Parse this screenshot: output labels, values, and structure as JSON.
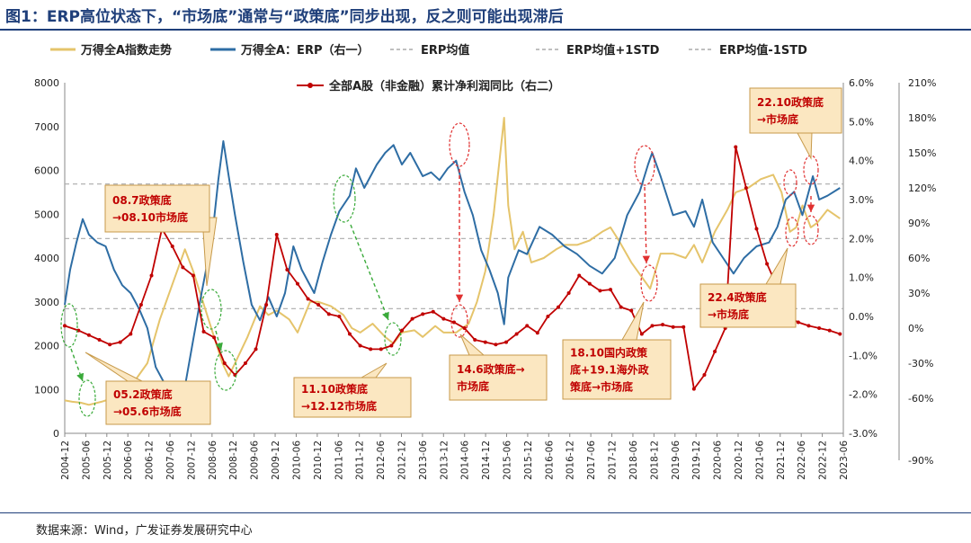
{
  "title": "图1：ERP高位状态下，“市场底”通常与“政策底”同步出现，反之则可能出现滞后",
  "source": "数据来源：Wind，广发证券发展研究中心",
  "colors": {
    "index": "#e5c46b",
    "erp": "#2e6da4",
    "profit": "#c00000",
    "erp_lines": "#aaaaaa",
    "callout_fill": "#fbe7c1",
    "callout_border": "#c79a4a",
    "green_arrow": "#3aaa3a",
    "red_arrow": "#e03030"
  },
  "chart_data": {
    "type": "line",
    "title": "图1：ERP高位状态下，“市场底”通常与“政策底”同步出现，反之则可能出现滞后",
    "x_labels": [
      "2004-12",
      "2005-06",
      "2005-12",
      "2006-06",
      "2006-12",
      "2007-06",
      "2007-12",
      "2008-06",
      "2008-12",
      "2009-06",
      "2009-12",
      "2010-06",
      "2010-12",
      "2011-06",
      "2011-12",
      "2012-06",
      "2012-12",
      "2013-06",
      "2013-12",
      "2014-06",
      "2014-12",
      "2015-06",
      "2015-12",
      "2016-06",
      "2016-12",
      "2017-06",
      "2017-12",
      "2018-06",
      "2018-12",
      "2019-06",
      "2019-12",
      "2020-06",
      "2020-12",
      "2021-06",
      "2021-12",
      "2022-06",
      "2022-12",
      "2023-06"
    ],
    "y_left": {
      "min": 0,
      "max": 8000,
      "ticks": [
        "0",
        "1000",
        "2000",
        "3000",
        "4000",
        "5000",
        "6000",
        "7000",
        "8000"
      ]
    },
    "y_right1": {
      "min": -3.0,
      "max": 6.0,
      "ticks": [
        "-3.0%",
        "-2.0%",
        "-1.0%",
        "0.0%",
        "1.0%",
        "2.0%",
        "3.0%",
        "4.0%",
        "5.0%",
        "6.0%"
      ]
    },
    "y_right2": {
      "min": -90,
      "max": 210,
      "ticks": [
        "-90%",
        "-60%",
        "-30%",
        "0%",
        "30%",
        "60%",
        "90%",
        "120%",
        "150%",
        "180%",
        "210%"
      ]
    },
    "legend_row1": [
      "万得全A指数走势",
      "万得全A：ERP（右一）",
      "ERP均值",
      "ERP均值+1STD",
      "ERP均值-1STD"
    ],
    "legend_row2": "全部A股（非金融）累计净利润同比（右二）",
    "erp_mean": 2.0,
    "erp_mean_plus_std": 3.4,
    "erp_mean_minus_std": 0.2,
    "series": [
      {
        "name": "万得全A指数走势",
        "axis": "left",
        "points": [
          [
            2004.92,
            750
          ],
          [
            2005.1,
            720
          ],
          [
            2005.3,
            700
          ],
          [
            2005.5,
            650
          ],
          [
            2005.8,
            720
          ],
          [
            2006.0,
            780
          ],
          [
            2006.3,
            950
          ],
          [
            2006.6,
            1200
          ],
          [
            2006.9,
            1600
          ],
          [
            2007.2,
            2600
          ],
          [
            2007.5,
            3400
          ],
          [
            2007.8,
            4200
          ],
          [
            2008.0,
            3700
          ],
          [
            2008.2,
            3100
          ],
          [
            2008.5,
            2200
          ],
          [
            2008.7,
            1600
          ],
          [
            2008.85,
            1300
          ],
          [
            2009.0,
            1600
          ],
          [
            2009.3,
            2200
          ],
          [
            2009.6,
            2900
          ],
          [
            2009.8,
            2700
          ],
          [
            2010.0,
            2800
          ],
          [
            2010.3,
            2600
          ],
          [
            2010.5,
            2300
          ],
          [
            2010.8,
            3000
          ],
          [
            2011.0,
            3000
          ],
          [
            2011.3,
            2900
          ],
          [
            2011.6,
            2700
          ],
          [
            2011.8,
            2400
          ],
          [
            2012.0,
            2300
          ],
          [
            2012.3,
            2500
          ],
          [
            2012.6,
            2200
          ],
          [
            2012.8,
            2050
          ],
          [
            2013.0,
            2300
          ],
          [
            2013.3,
            2350
          ],
          [
            2013.5,
            2200
          ],
          [
            2013.8,
            2450
          ],
          [
            2014.0,
            2300
          ],
          [
            2014.3,
            2300
          ],
          [
            2014.6,
            2500
          ],
          [
            2014.8,
            3000
          ],
          [
            2015.0,
            3700
          ],
          [
            2015.2,
            5000
          ],
          [
            2015.45,
            7200
          ],
          [
            2015.55,
            5200
          ],
          [
            2015.7,
            4200
          ],
          [
            2015.9,
            4600
          ],
          [
            2016.1,
            3900
          ],
          [
            2016.4,
            4000
          ],
          [
            2016.7,
            4200
          ],
          [
            2016.9,
            4300
          ],
          [
            2017.2,
            4300
          ],
          [
            2017.5,
            4400
          ],
          [
            2017.8,
            4600
          ],
          [
            2018.0,
            4700
          ],
          [
            2018.2,
            4400
          ],
          [
            2018.5,
            3900
          ],
          [
            2018.8,
            3500
          ],
          [
            2018.95,
            3300
          ],
          [
            2019.2,
            4100
          ],
          [
            2019.5,
            4100
          ],
          [
            2019.8,
            4000
          ],
          [
            2020.0,
            4300
          ],
          [
            2020.2,
            3900
          ],
          [
            2020.5,
            4600
          ],
          [
            2020.8,
            5100
          ],
          [
            2021.0,
            5500
          ],
          [
            2021.3,
            5600
          ],
          [
            2021.6,
            5800
          ],
          [
            2021.9,
            5900
          ],
          [
            2022.1,
            5500
          ],
          [
            2022.3,
            4600
          ],
          [
            2022.45,
            4700
          ],
          [
            2022.6,
            5200
          ],
          [
            2022.8,
            4700
          ],
          [
            2022.95,
            4800
          ],
          [
            2023.2,
            5100
          ],
          [
            2023.5,
            4900
          ]
        ]
      },
      {
        "name": "万得全A：ERP（右一）",
        "axis": "right1",
        "points": [
          [
            2004.92,
            0.3
          ],
          [
            2005.05,
            1.2
          ],
          [
            2005.2,
            1.9
          ],
          [
            2005.35,
            2.5
          ],
          [
            2005.5,
            2.1
          ],
          [
            2005.7,
            1.9
          ],
          [
            2005.9,
            1.8
          ],
          [
            2006.1,
            1.2
          ],
          [
            2006.3,
            0.8
          ],
          [
            2006.5,
            0.6
          ],
          [
            2006.7,
            0.2
          ],
          [
            2006.9,
            -0.3
          ],
          [
            2007.1,
            -1.3
          ],
          [
            2007.35,
            -1.8
          ],
          [
            2007.6,
            -2.0
          ],
          [
            2007.8,
            -1.8
          ],
          [
            2008.0,
            -0.6
          ],
          [
            2008.2,
            0.6
          ],
          [
            2008.45,
            2.0
          ],
          [
            2008.6,
            3.5
          ],
          [
            2008.72,
            4.5
          ],
          [
            2008.85,
            3.6
          ],
          [
            2009.0,
            2.6
          ],
          [
            2009.2,
            1.4
          ],
          [
            2009.4,
            0.3
          ],
          [
            2009.6,
            -0.1
          ],
          [
            2009.8,
            0.5
          ],
          [
            2010.0,
            0.0
          ],
          [
            2010.2,
            0.6
          ],
          [
            2010.4,
            1.8
          ],
          [
            2010.6,
            1.2
          ],
          [
            2010.9,
            0.6
          ],
          [
            2011.1,
            1.4
          ],
          [
            2011.3,
            2.1
          ],
          [
            2011.5,
            2.7
          ],
          [
            2011.75,
            3.1
          ],
          [
            2011.9,
            3.8
          ],
          [
            2012.1,
            3.3
          ],
          [
            2012.4,
            3.9
          ],
          [
            2012.6,
            4.2
          ],
          [
            2012.8,
            4.4
          ],
          [
            2013.0,
            3.9
          ],
          [
            2013.2,
            4.2
          ],
          [
            2013.5,
            3.6
          ],
          [
            2013.7,
            3.7
          ],
          [
            2013.9,
            3.5
          ],
          [
            2014.1,
            3.8
          ],
          [
            2014.3,
            4.0
          ],
          [
            2014.5,
            3.2
          ],
          [
            2014.7,
            2.6
          ],
          [
            2014.9,
            1.7
          ],
          [
            2015.1,
            1.2
          ],
          [
            2015.3,
            0.6
          ],
          [
            2015.45,
            -0.2
          ],
          [
            2015.55,
            1.0
          ],
          [
            2015.8,
            1.7
          ],
          [
            2016.0,
            1.6
          ],
          [
            2016.3,
            2.3
          ],
          [
            2016.6,
            2.1
          ],
          [
            2016.9,
            1.8
          ],
          [
            2017.2,
            1.6
          ],
          [
            2017.5,
            1.3
          ],
          [
            2017.8,
            1.1
          ],
          [
            2018.1,
            1.5
          ],
          [
            2018.4,
            2.6
          ],
          [
            2018.7,
            3.2
          ],
          [
            2018.9,
            3.9
          ],
          [
            2019.0,
            4.2
          ],
          [
            2019.2,
            3.6
          ],
          [
            2019.5,
            2.6
          ],
          [
            2019.8,
            2.7
          ],
          [
            2020.0,
            2.3
          ],
          [
            2020.2,
            3.0
          ],
          [
            2020.45,
            1.9
          ],
          [
            2020.7,
            1.5
          ],
          [
            2020.95,
            1.1
          ],
          [
            2021.2,
            1.5
          ],
          [
            2021.5,
            1.8
          ],
          [
            2021.8,
            1.9
          ],
          [
            2022.0,
            2.3
          ],
          [
            2022.2,
            3.0
          ],
          [
            2022.4,
            3.2
          ],
          [
            2022.6,
            2.6
          ],
          [
            2022.85,
            3.6
          ],
          [
            2023.0,
            3.0
          ],
          [
            2023.2,
            3.1
          ],
          [
            2023.5,
            3.3
          ]
        ]
      },
      {
        "name": "全部A股（非金融）累计净利润同比（右二）",
        "axis": "right2",
        "points": [
          [
            2004.92,
            2
          ],
          [
            2005.25,
            -2
          ],
          [
            2005.5,
            -6
          ],
          [
            2005.75,
            -10
          ],
          [
            2006.0,
            -14
          ],
          [
            2006.25,
            -12
          ],
          [
            2006.5,
            -5
          ],
          [
            2006.75,
            20
          ],
          [
            2007.0,
            45
          ],
          [
            2007.25,
            85
          ],
          [
            2007.5,
            70
          ],
          [
            2007.75,
            52
          ],
          [
            2008.0,
            45
          ],
          [
            2008.25,
            -3
          ],
          [
            2008.5,
            -8
          ],
          [
            2008.75,
            -30
          ],
          [
            2009.0,
            -40
          ],
          [
            2009.25,
            -30
          ],
          [
            2009.5,
            -18
          ],
          [
            2009.75,
            20
          ],
          [
            2010.0,
            80
          ],
          [
            2010.25,
            50
          ],
          [
            2010.5,
            38
          ],
          [
            2010.75,
            25
          ],
          [
            2011.0,
            20
          ],
          [
            2011.25,
            12
          ],
          [
            2011.5,
            10
          ],
          [
            2011.75,
            -5
          ],
          [
            2012.0,
            -15
          ],
          [
            2012.25,
            -18
          ],
          [
            2012.5,
            -18
          ],
          [
            2012.75,
            -15
          ],
          [
            2013.0,
            -2
          ],
          [
            2013.25,
            8
          ],
          [
            2013.5,
            12
          ],
          [
            2013.75,
            14
          ],
          [
            2014.0,
            8
          ],
          [
            2014.25,
            5
          ],
          [
            2014.5,
            0
          ],
          [
            2014.75,
            -10
          ],
          [
            2015.0,
            -12
          ],
          [
            2015.25,
            -14
          ],
          [
            2015.5,
            -12
          ],
          [
            2015.75,
            -5
          ],
          [
            2016.0,
            2
          ],
          [
            2016.25,
            -4
          ],
          [
            2016.5,
            10
          ],
          [
            2016.75,
            18
          ],
          [
            2017.0,
            30
          ],
          [
            2017.25,
            45
          ],
          [
            2017.5,
            38
          ],
          [
            2017.75,
            32
          ],
          [
            2018.0,
            33
          ],
          [
            2018.25,
            18
          ],
          [
            2018.5,
            15
          ],
          [
            2018.75,
            -5
          ],
          [
            2019.0,
            2
          ],
          [
            2019.25,
            3
          ],
          [
            2019.5,
            1
          ],
          [
            2019.75,
            1
          ],
          [
            2020.0,
            -52
          ],
          [
            2020.25,
            -40
          ],
          [
            2020.5,
            -20
          ],
          [
            2020.75,
            0
          ],
          [
            2021.0,
            155
          ],
          [
            2021.25,
            120
          ],
          [
            2021.5,
            85
          ],
          [
            2021.75,
            55
          ],
          [
            2022.0,
            35
          ],
          [
            2022.25,
            10
          ],
          [
            2022.5,
            5
          ],
          [
            2022.75,
            2
          ],
          [
            2023.0,
            0
          ],
          [
            2023.25,
            -2
          ],
          [
            2023.5,
            -5
          ]
        ]
      }
    ],
    "annotations": [
      {
        "id": "a1",
        "lines": [
          "08.7政策底",
          "→08.10市场底"
        ]
      },
      {
        "id": "a2",
        "lines": [
          "05.2政策底",
          "→05.6市场底"
        ]
      },
      {
        "id": "a3",
        "lines": [
          "11.10政策底",
          "→12.12市场底"
        ]
      },
      {
        "id": "a4",
        "lines": [
          "14.6政策底→",
          "市场底"
        ]
      },
      {
        "id": "a5",
        "lines": [
          "18.10国内政策",
          "底+19.1海外政",
          "策底→市场底"
        ]
      },
      {
        "id": "a6",
        "lines": [
          "22.4政策底",
          "→市场底"
        ]
      },
      {
        "id": "a7",
        "lines": [
          "22.10政策底",
          "→市场底"
        ]
      }
    ]
  }
}
